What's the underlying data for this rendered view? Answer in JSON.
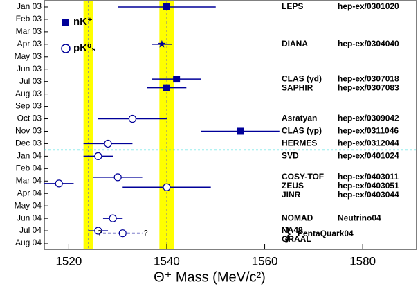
{
  "chart_data": {
    "type": "scatter",
    "xlabel": "Θ⁺ Mass  (MeV/c²)",
    "xlim": [
      1515,
      1591
    ],
    "xticks": [
      1520,
      1540,
      1560,
      1580
    ],
    "ylim": [
      -0.5,
      19.5
    ],
    "y_reversed": true,
    "yticks": [
      {
        "value": 0,
        "label": "Jan 03"
      },
      {
        "value": 1,
        "label": "Feb 03"
      },
      {
        "value": 2,
        "label": "Mar 03"
      },
      {
        "value": 3,
        "label": "Apr 03"
      },
      {
        "value": 4,
        "label": "May 03"
      },
      {
        "value": 5,
        "label": "Jun 03"
      },
      {
        "value": 6,
        "label": "Jul 03"
      },
      {
        "value": 7,
        "label": "Aug 03"
      },
      {
        "value": 8,
        "label": "Sep 03"
      },
      {
        "value": 9,
        "label": "Oct 03"
      },
      {
        "value": 10,
        "label": "Nov 03"
      },
      {
        "value": 11,
        "label": "Dec 03"
      },
      {
        "value": 12,
        "label": "Jan 04"
      },
      {
        "value": 13,
        "label": "Feb 04"
      },
      {
        "value": 14,
        "label": "Mar 04"
      },
      {
        "value": 15,
        "label": "Apr 04"
      },
      {
        "value": 16,
        "label": "May 04"
      },
      {
        "value": 17,
        "label": "Jun 04"
      },
      {
        "value": 18,
        "label": "Jul 04"
      },
      {
        "value": 19,
        "label": "Aug 04"
      }
    ],
    "color": "#000099",
    "bands": [
      [
        1523,
        1525
      ],
      [
        1538.5,
        1541.5
      ]
    ],
    "band_color": "#ffff00",
    "divider_color": "#33dddd",
    "legend": [
      {
        "label": "nK⁺",
        "marker": "square"
      },
      {
        "label": "pK⁰ₛ",
        "marker": "circle"
      }
    ],
    "experiments": {
      "names": [
        "LEPS",
        "DIANA",
        "CLAS (γd)",
        "SAPHIR",
        "Asratyan",
        "CLAS (γp)",
        "HERMES",
        "SVD",
        "COSY-TOF",
        "ZEUS",
        "JINR",
        "NOMAD",
        "NA49",
        "GRAAL"
      ],
      "refs": [
        "hep-ex/0301020",
        "hep-ex/0304040",
        "hep-ex/0307018",
        "hep-ex/0307083",
        "hep-ex/0309042",
        "hep-ex/0311046",
        "hep-ex/0312044",
        "hep-ex/0401024",
        "hep-ex/0403011",
        "hep-ex/0403051",
        "hep-ex/0403044",
        "Neutrino04",
        null,
        null
      ],
      "x": [
        1540,
        1539,
        1542,
        1540,
        1533,
        1555,
        1528,
        1526,
        1530,
        1518,
        1540,
        1529,
        1526,
        1531
      ],
      "xerr": [
        10,
        2,
        5,
        4,
        7,
        8,
        5,
        3,
        5,
        3,
        9,
        2,
        2,
        4
      ],
      "y": [
        0,
        3,
        5.8,
        6.5,
        9,
        10,
        11,
        12,
        13.7,
        14.2,
        14.5,
        17,
        18,
        18.2
      ],
      "markers": [
        "square",
        "star",
        "square",
        "square",
        "circle",
        "square",
        "circle",
        "circle",
        "circle",
        "circle",
        "circle",
        "circle",
        "circle",
        "circle"
      ],
      "dashed": [
        false,
        false,
        false,
        false,
        false,
        false,
        false,
        false,
        false,
        false,
        false,
        false,
        false,
        true
      ]
    },
    "uncertain_mark": "?",
    "group_ref": "PentaQuark04"
  }
}
